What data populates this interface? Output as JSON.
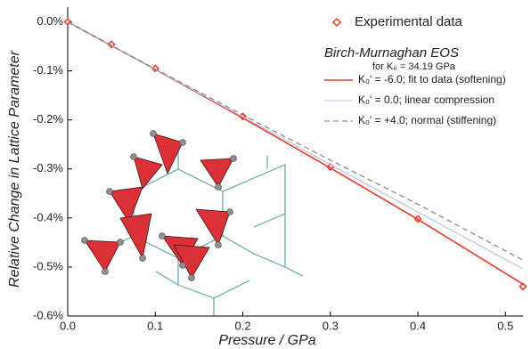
{
  "chart_data": {
    "type": "line",
    "x_label": "Pressure / GPa",
    "y_label": "Relative Change in Lattice Parameter",
    "legend_title": "Birch-Murnaghan EOS",
    "legend_note": "for K₀ = 34.19 GPa",
    "xlim": [
      0,
      0.52
    ],
    "ylim": [
      -0.6,
      0.03
    ],
    "xticks": [
      {
        "value": 0,
        "label": "0.0"
      },
      0.1,
      0.2,
      0.3,
      0.4,
      0.5
    ],
    "yticks": [
      {
        "value": 0,
        "label": "0.0%"
      },
      {
        "value": -0.1,
        "label": "-0.1%"
      },
      {
        "value": -0.2,
        "label": "-0.2%"
      },
      {
        "value": -0.3,
        "label": "-0.3%"
      },
      {
        "value": -0.4,
        "label": "-0.4%"
      },
      {
        "value": -0.5,
        "label": "-0.5%"
      },
      {
        "value": -0.6,
        "label": "-0.6%"
      }
    ],
    "legend": "upper right",
    "series": [
      {
        "name": "Experimental data",
        "style": "markers",
        "color": "#e8392b",
        "x": [
          0,
          0.05,
          0.1,
          0.2,
          0.3,
          0.4,
          0.52
        ],
        "values": [
          0,
          -0.046,
          -0.095,
          -0.193,
          -0.296,
          -0.402,
          -0.54
        ]
      },
      {
        "name": "K₀' = -6.0;  fit to data (softening)",
        "style": "solid",
        "color": "#e8392b",
        "x": [
          0,
          0.1,
          0.2,
          0.3,
          0.4,
          0.52
        ],
        "values": [
          0,
          -0.097,
          -0.196,
          -0.298,
          -0.403,
          -0.535
        ]
      },
      {
        "name": "K₀' =  0.0;  linear compression",
        "style": "solid",
        "color": "#b4c0d8",
        "x": [
          0,
          0.52
        ],
        "values": [
          0,
          -0.504
        ]
      },
      {
        "name": "K₀' = +4.0; normal (stiffening)",
        "style": "dashed",
        "color": "#7a7a7a",
        "x": [
          0,
          0.1,
          0.2,
          0.3,
          0.4,
          0.52
        ],
        "values": [
          0,
          -0.096,
          -0.19,
          -0.282,
          -0.372,
          -0.486
        ]
      }
    ]
  }
}
